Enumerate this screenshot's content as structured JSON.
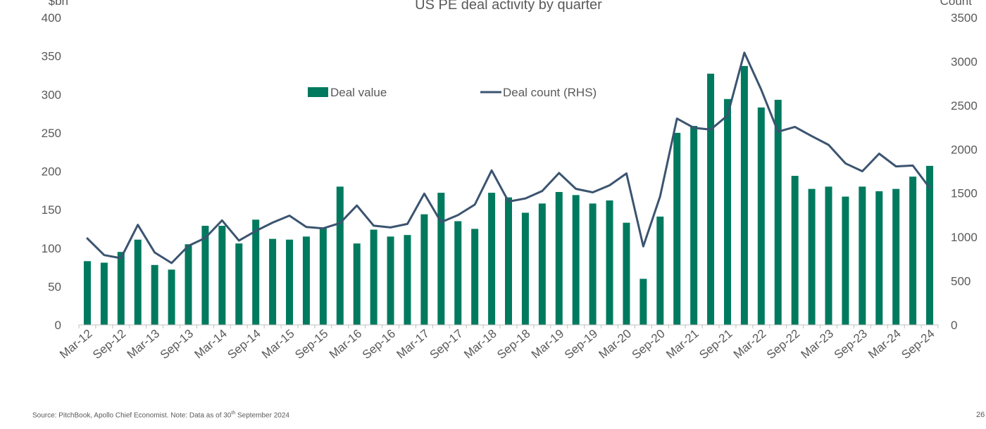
{
  "chart_data": {
    "type": "bar",
    "title": "US PE deal activity by quarter",
    "ylabel_left": "$bn",
    "ylabel_right": "Count",
    "ylim_left": [
      0,
      400
    ],
    "yticks_left": [
      "0",
      "50",
      "100",
      "150",
      "200",
      "250",
      "300",
      "350",
      "400"
    ],
    "ylim_right": [
      0,
      3500
    ],
    "yticks_right": [
      "0",
      "500",
      "1000",
      "1500",
      "2000",
      "2500",
      "3000",
      "3500"
    ],
    "grid": false,
    "legend_position": "top-center",
    "categories": [
      "Mar-12",
      "Jun-12",
      "Sep-12",
      "Dec-12",
      "Mar-13",
      "Jun-13",
      "Sep-13",
      "Dec-13",
      "Mar-14",
      "Jun-14",
      "Sep-14",
      "Dec-14",
      "Mar-15",
      "Jun-15",
      "Sep-15",
      "Dec-15",
      "Mar-16",
      "Jun-16",
      "Sep-16",
      "Dec-16",
      "Mar-17",
      "Jun-17",
      "Sep-17",
      "Dec-17",
      "Mar-18",
      "Jun-18",
      "Sep-18",
      "Dec-18",
      "Mar-19",
      "Jun-19",
      "Sep-19",
      "Dec-19",
      "Mar-20",
      "Jun-20",
      "Sep-20",
      "Dec-20",
      "Mar-21",
      "Jun-21",
      "Sep-21",
      "Dec-21",
      "Mar-22",
      "Jun-22",
      "Sep-22",
      "Dec-22",
      "Mar-23",
      "Jun-23",
      "Sep-23",
      "Dec-23",
      "Mar-24",
      "Jun-24",
      "Sep-24"
    ],
    "x_tick_labels": [
      "Mar-12",
      "Sep-12",
      "Mar-13",
      "Sep-13",
      "Mar-14",
      "Sep-14",
      "Mar-15",
      "Sep-15",
      "Mar-16",
      "Sep-16",
      "Mar-17",
      "Sep-17",
      "Mar-18",
      "Sep-18",
      "Mar-19",
      "Sep-19",
      "Mar-20",
      "Sep-20",
      "Mar-21",
      "Sep-21",
      "Mar-22",
      "Sep-22",
      "Mar-23",
      "Sep-23",
      "Mar-24",
      "Sep-24"
    ],
    "series": [
      {
        "name": "Deal value",
        "type": "bar",
        "axis": "left",
        "color": "#007A5E",
        "values": [
          83,
          81,
          95,
          111,
          78,
          72,
          105,
          129,
          129,
          106,
          137,
          112,
          111,
          115,
          126,
          180,
          106,
          124,
          115,
          117,
          144,
          172,
          135,
          125,
          172,
          166,
          146,
          158,
          173,
          169,
          158,
          162,
          133,
          60,
          141,
          250,
          259,
          327,
          294,
          337,
          283,
          293,
          194,
          177,
          180,
          167,
          180,
          174,
          177,
          193,
          207
        ]
      },
      {
        "name": "Deal count (RHS)",
        "type": "line",
        "axis": "right",
        "color": "#3B5470",
        "values": [
          985,
          795,
          760,
          1140,
          825,
          705,
          900,
          990,
          1190,
          960,
          1070,
          1165,
          1245,
          1115,
          1100,
          1160,
          1360,
          1130,
          1110,
          1150,
          1495,
          1170,
          1250,
          1370,
          1760,
          1405,
          1440,
          1525,
          1730,
          1550,
          1510,
          1590,
          1725,
          895,
          1465,
          2350,
          2245,
          2225,
          2385,
          3100,
          2680,
          2200,
          2255,
          2150,
          2050,
          1840,
          1750,
          1950,
          1805,
          1815,
          1560
        ]
      }
    ]
  },
  "footer": {
    "source_prefix": "Source: PitchBook, Apollo Chief Economist. Note: Data as of 30",
    "source_sup": "th",
    "source_suffix": " September 2024",
    "page_number": "26"
  }
}
